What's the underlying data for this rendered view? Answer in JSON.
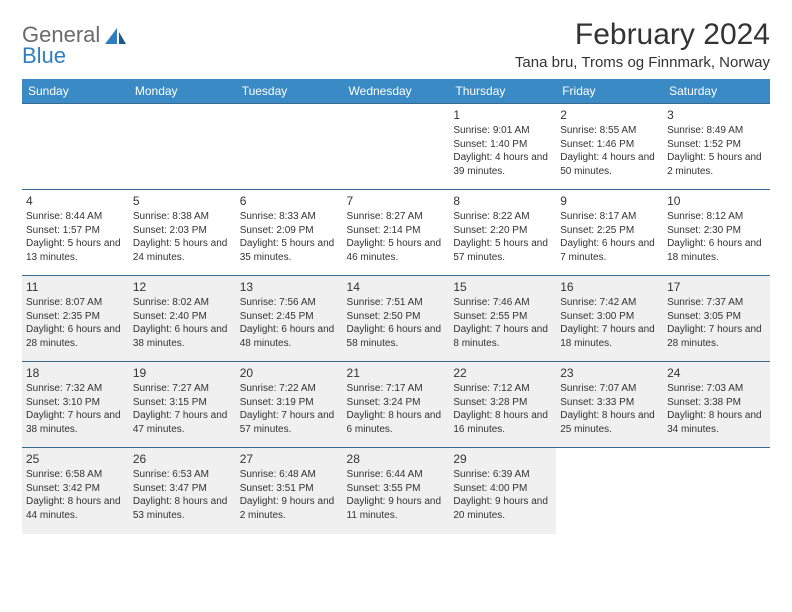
{
  "logo": {
    "line1": "General",
    "line2": "Blue"
  },
  "title": "February 2024",
  "subtitle": "Tana bru, Troms og Finnmark, Norway",
  "colors": {
    "header_bg": "#3a8ac5",
    "header_text": "#ffffff",
    "cell_border": "#3a6a8f",
    "shade_bg": "#f0f0f0",
    "logo_gray": "#6b6b6b",
    "logo_blue": "#2f7fc0"
  },
  "day_headers": [
    "Sunday",
    "Monday",
    "Tuesday",
    "Wednesday",
    "Thursday",
    "Friday",
    "Saturday"
  ],
  "weeks": [
    [
      null,
      null,
      null,
      null,
      {
        "n": "1",
        "sr": "Sunrise: 9:01 AM",
        "ss": "Sunset: 1:40 PM",
        "dl": "Daylight: 4 hours and 39 minutes."
      },
      {
        "n": "2",
        "sr": "Sunrise: 8:55 AM",
        "ss": "Sunset: 1:46 PM",
        "dl": "Daylight: 4 hours and 50 minutes."
      },
      {
        "n": "3",
        "sr": "Sunrise: 8:49 AM",
        "ss": "Sunset: 1:52 PM",
        "dl": "Daylight: 5 hours and 2 minutes."
      }
    ],
    [
      {
        "n": "4",
        "sr": "Sunrise: 8:44 AM",
        "ss": "Sunset: 1:57 PM",
        "dl": "Daylight: 5 hours and 13 minutes."
      },
      {
        "n": "5",
        "sr": "Sunrise: 8:38 AM",
        "ss": "Sunset: 2:03 PM",
        "dl": "Daylight: 5 hours and 24 minutes."
      },
      {
        "n": "6",
        "sr": "Sunrise: 8:33 AM",
        "ss": "Sunset: 2:09 PM",
        "dl": "Daylight: 5 hours and 35 minutes."
      },
      {
        "n": "7",
        "sr": "Sunrise: 8:27 AM",
        "ss": "Sunset: 2:14 PM",
        "dl": "Daylight: 5 hours and 46 minutes."
      },
      {
        "n": "8",
        "sr": "Sunrise: 8:22 AM",
        "ss": "Sunset: 2:20 PM",
        "dl": "Daylight: 5 hours and 57 minutes."
      },
      {
        "n": "9",
        "sr": "Sunrise: 8:17 AM",
        "ss": "Sunset: 2:25 PM",
        "dl": "Daylight: 6 hours and 7 minutes."
      },
      {
        "n": "10",
        "sr": "Sunrise: 8:12 AM",
        "ss": "Sunset: 2:30 PM",
        "dl": "Daylight: 6 hours and 18 minutes."
      }
    ],
    [
      {
        "n": "11",
        "sr": "Sunrise: 8:07 AM",
        "ss": "Sunset: 2:35 PM",
        "dl": "Daylight: 6 hours and 28 minutes.",
        "shade": true
      },
      {
        "n": "12",
        "sr": "Sunrise: 8:02 AM",
        "ss": "Sunset: 2:40 PM",
        "dl": "Daylight: 6 hours and 38 minutes.",
        "shade": true
      },
      {
        "n": "13",
        "sr": "Sunrise: 7:56 AM",
        "ss": "Sunset: 2:45 PM",
        "dl": "Daylight: 6 hours and 48 minutes.",
        "shade": true
      },
      {
        "n": "14",
        "sr": "Sunrise: 7:51 AM",
        "ss": "Sunset: 2:50 PM",
        "dl": "Daylight: 6 hours and 58 minutes.",
        "shade": true
      },
      {
        "n": "15",
        "sr": "Sunrise: 7:46 AM",
        "ss": "Sunset: 2:55 PM",
        "dl": "Daylight: 7 hours and 8 minutes.",
        "shade": true
      },
      {
        "n": "16",
        "sr": "Sunrise: 7:42 AM",
        "ss": "Sunset: 3:00 PM",
        "dl": "Daylight: 7 hours and 18 minutes.",
        "shade": true
      },
      {
        "n": "17",
        "sr": "Sunrise: 7:37 AM",
        "ss": "Sunset: 3:05 PM",
        "dl": "Daylight: 7 hours and 28 minutes.",
        "shade": true
      }
    ],
    [
      {
        "n": "18",
        "sr": "Sunrise: 7:32 AM",
        "ss": "Sunset: 3:10 PM",
        "dl": "Daylight: 7 hours and 38 minutes.",
        "shade": true
      },
      {
        "n": "19",
        "sr": "Sunrise: 7:27 AM",
        "ss": "Sunset: 3:15 PM",
        "dl": "Daylight: 7 hours and 47 minutes.",
        "shade": true
      },
      {
        "n": "20",
        "sr": "Sunrise: 7:22 AM",
        "ss": "Sunset: 3:19 PM",
        "dl": "Daylight: 7 hours and 57 minutes.",
        "shade": true
      },
      {
        "n": "21",
        "sr": "Sunrise: 7:17 AM",
        "ss": "Sunset: 3:24 PM",
        "dl": "Daylight: 8 hours and 6 minutes.",
        "shade": true
      },
      {
        "n": "22",
        "sr": "Sunrise: 7:12 AM",
        "ss": "Sunset: 3:28 PM",
        "dl": "Daylight: 8 hours and 16 minutes.",
        "shade": true
      },
      {
        "n": "23",
        "sr": "Sunrise: 7:07 AM",
        "ss": "Sunset: 3:33 PM",
        "dl": "Daylight: 8 hours and 25 minutes.",
        "shade": true
      },
      {
        "n": "24",
        "sr": "Sunrise: 7:03 AM",
        "ss": "Sunset: 3:38 PM",
        "dl": "Daylight: 8 hours and 34 minutes.",
        "shade": true
      }
    ],
    [
      {
        "n": "25",
        "sr": "Sunrise: 6:58 AM",
        "ss": "Sunset: 3:42 PM",
        "dl": "Daylight: 8 hours and 44 minutes.",
        "shade": true
      },
      {
        "n": "26",
        "sr": "Sunrise: 6:53 AM",
        "ss": "Sunset: 3:47 PM",
        "dl": "Daylight: 8 hours and 53 minutes.",
        "shade": true
      },
      {
        "n": "27",
        "sr": "Sunrise: 6:48 AM",
        "ss": "Sunset: 3:51 PM",
        "dl": "Daylight: 9 hours and 2 minutes.",
        "shade": true
      },
      {
        "n": "28",
        "sr": "Sunrise: 6:44 AM",
        "ss": "Sunset: 3:55 PM",
        "dl": "Daylight: 9 hours and 11 minutes.",
        "shade": true
      },
      {
        "n": "29",
        "sr": "Sunrise: 6:39 AM",
        "ss": "Sunset: 4:00 PM",
        "dl": "Daylight: 9 hours and 20 minutes.",
        "shade": true
      },
      null,
      null
    ]
  ]
}
